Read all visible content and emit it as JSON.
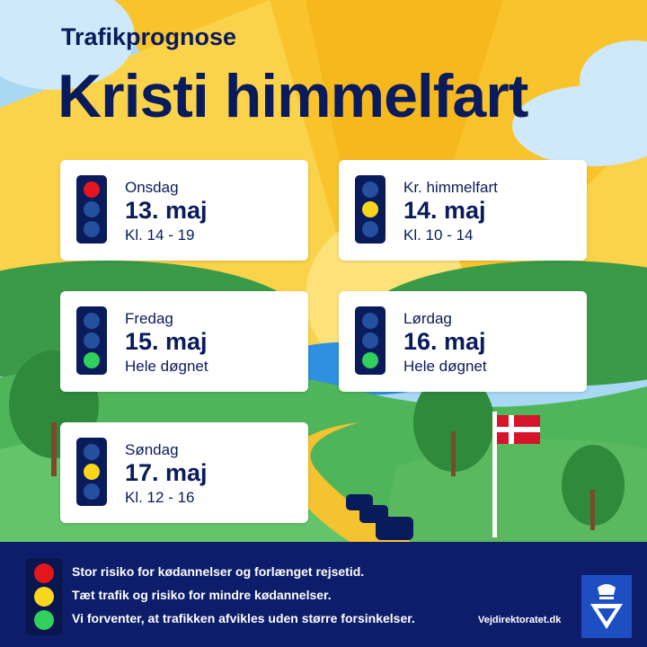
{
  "header": {
    "pre_title": "Trafikprognose",
    "title": "Kristi himmelfart"
  },
  "cards": [
    {
      "day": "Onsdag",
      "date": "13. maj",
      "time": "Kl. 14 - 19",
      "signal": "red"
    },
    {
      "day": "Kr. himmelfart",
      "date": "14. maj",
      "time": "Kl. 10 - 14",
      "signal": "yellow"
    },
    {
      "day": "Fredag",
      "date": "15. maj",
      "time": "Hele døgnet",
      "signal": "green"
    },
    {
      "day": "Lørdag",
      "date": "16. maj",
      "time": "Hele døgnet",
      "signal": "green"
    },
    {
      "day": "Søndag",
      "date": "17. maj",
      "time": "Kl. 12 - 16",
      "signal": "yellow"
    }
  ],
  "legend": {
    "red": "Stor risiko for kødannelser og forlænget rejsetid.",
    "yellow": "Tæt trafik og risiko for mindre kødannelser.",
    "green": "Vi forventer, at trafikken afvikles uden større forsinkelser."
  },
  "footer": {
    "site": "Vejdirektoratet.dk"
  },
  "colors": {
    "navy": "#0a1b5c",
    "red": "#e4161d",
    "yellow": "#f9d61b",
    "green": "#2fd05b",
    "legend_bg": "#0d1d6b",
    "sky": "#a9d8f3",
    "sun": "#f9c42b"
  }
}
